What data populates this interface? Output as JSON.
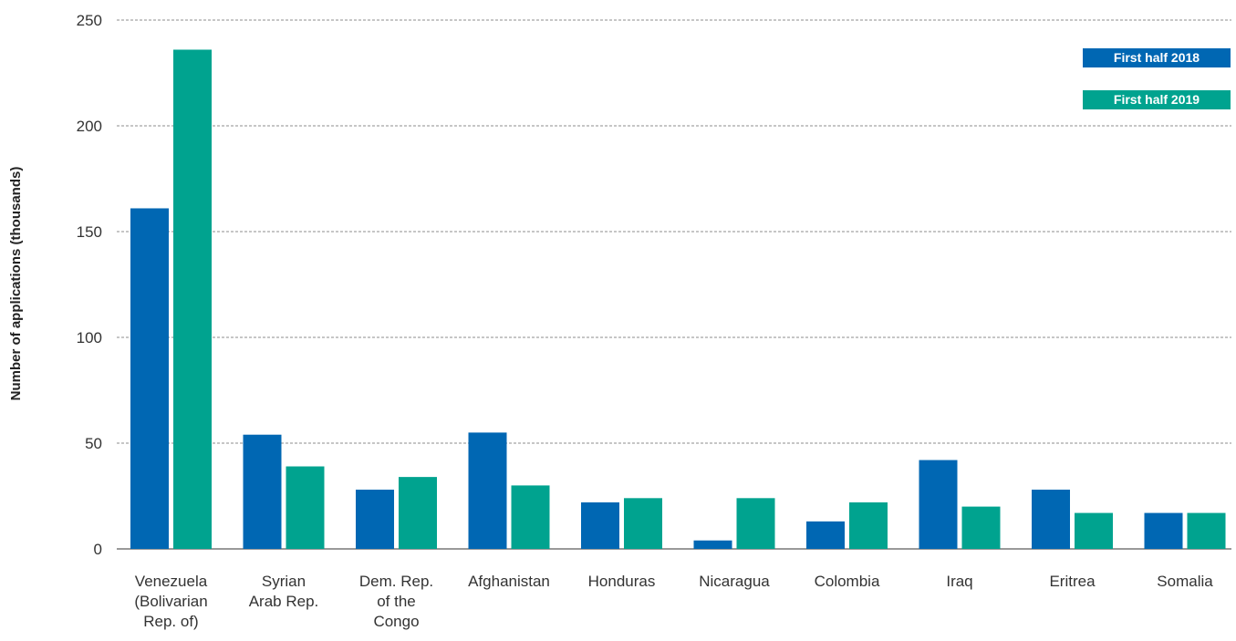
{
  "colors": {
    "series_2018": "#0067b3",
    "series_2019": "#00a38f",
    "grid": "#8c8c8c",
    "axis": "#333333",
    "text": "#333333"
  },
  "chart_data": {
    "type": "bar",
    "title": "",
    "xlabel": "",
    "ylabel": "Number of applications (thousands)",
    "ylim": [
      0,
      250
    ],
    "yticks": [
      0,
      50,
      100,
      150,
      200,
      250
    ],
    "grid": true,
    "legend_position": "top-right",
    "categories": [
      [
        "Venezuela",
        "(Bolivarian",
        "Rep. of)"
      ],
      [
        "Syrian",
        "Arab Rep."
      ],
      [
        "Dem. Rep.",
        "of the",
        "Congo"
      ],
      [
        "Afghanistan"
      ],
      [
        "Honduras"
      ],
      [
        "Nicaragua"
      ],
      [
        "Colombia"
      ],
      [
        "Iraq"
      ],
      [
        "Eritrea"
      ],
      [
        "Somalia"
      ]
    ],
    "series": [
      {
        "name": "First half 2018",
        "color_key": "series_2018",
        "values": [
          161,
          54,
          28,
          55,
          22,
          4,
          13,
          42,
          28,
          17
        ]
      },
      {
        "name": "First half 2019",
        "color_key": "series_2019",
        "values": [
          236,
          39,
          34,
          30,
          24,
          24,
          22,
          20,
          17,
          17
        ]
      }
    ]
  }
}
